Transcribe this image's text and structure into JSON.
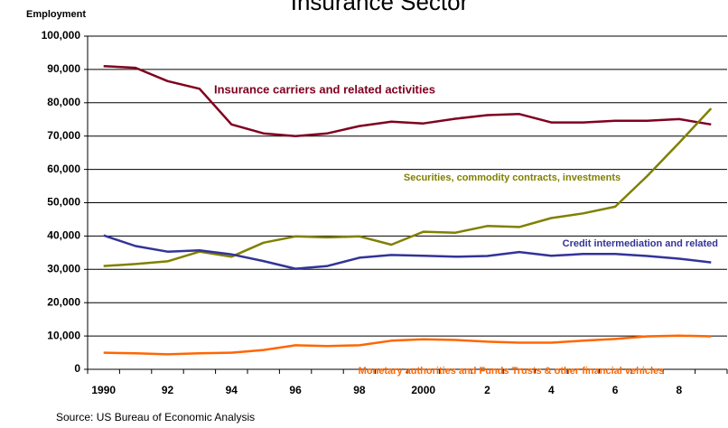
{
  "chart_data": {
    "type": "line",
    "title": "Insurance Sector",
    "y_label": "Employment",
    "source": "Source:  US Bureau of Economic Analysis",
    "categories": [
      "1990",
      null,
      "92",
      null,
      "94",
      null,
      "96",
      null,
      "98",
      null,
      "2000",
      null,
      "2",
      null,
      "4",
      null,
      "6",
      null,
      "8",
      null
    ],
    "series": [
      {
        "name": "Insurance carriers and related activities",
        "color": "#800020",
        "values": [
          91000,
          90500,
          86500,
          84200,
          73500,
          70800,
          70000,
          70800,
          73000,
          74300,
          73800,
          75200,
          76300,
          76600,
          74100,
          74100,
          74600,
          74600,
          75100,
          73500
        ]
      },
      {
        "name": "Securities, commodity contracts, investments",
        "color": "#808000",
        "values": [
          31000,
          31600,
          32400,
          35300,
          33800,
          38000,
          39900,
          39600,
          39900,
          37400,
          41300,
          41000,
          43000,
          42700,
          45400,
          46800,
          48800,
          58000,
          68000,
          78300
        ]
      },
      {
        "name": "Credit intermediation and related",
        "color": "#333399",
        "values": [
          40200,
          37000,
          35300,
          35700,
          34500,
          32500,
          30200,
          31000,
          33500,
          34300,
          34100,
          33800,
          34000,
          35200,
          34100,
          34600,
          34600,
          34000,
          33200,
          32100
        ]
      },
      {
        "name": "Monetary authorities and Funds Trusts & other financial vehicles",
        "color": "#ff6600",
        "values": [
          5000,
          4800,
          4500,
          4800,
          5000,
          5800,
          7200,
          7000,
          7200,
          8600,
          9000,
          8800,
          8300,
          8000,
          8000,
          8600,
          9100,
          9900,
          10100,
          9900
        ]
      }
    ],
    "ylim": [
      0,
      100000
    ],
    "yticks": [
      0,
      {
        "value": 10000,
        "label": "10,000"
      },
      {
        "value": 20000,
        "label": "20,000"
      },
      {
        "value": 30000,
        "label": "30,000"
      },
      {
        "value": 40000,
        "label": "40,000"
      },
      {
        "value": 50000,
        "label": "50,000"
      },
      {
        "value": 60000,
        "label": "60,000"
      },
      {
        "value": 70000,
        "label": "70,000"
      },
      {
        "value": 80000,
        "label": "80,000"
      },
      {
        "value": 90000,
        "label": "90,000"
      },
      {
        "value": 100000,
        "label": "100,000"
      }
    ],
    "grid": true
  }
}
